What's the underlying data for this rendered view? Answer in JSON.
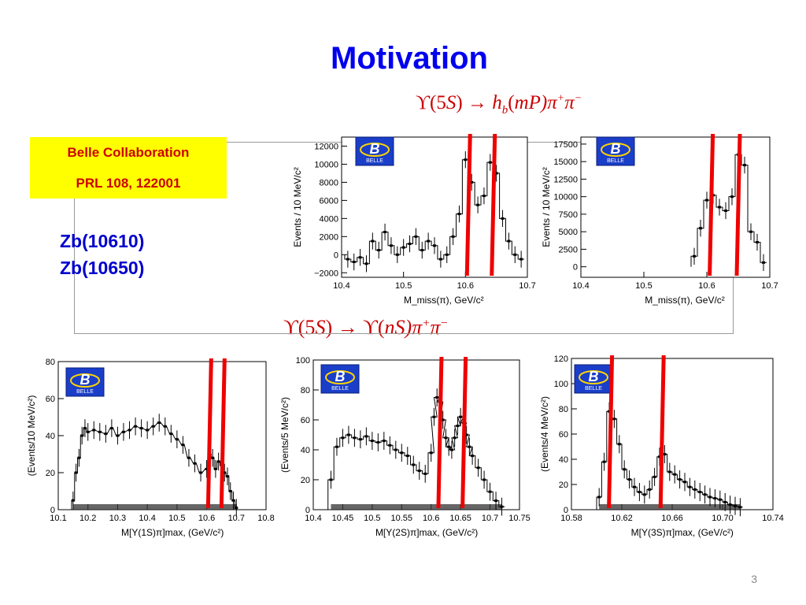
{
  "slide": {
    "title": "Motivation",
    "page_number": "3",
    "eq_top": "ϒ(5S) → h_b(mP)π⁺π⁻",
    "eq_top_parts": {
      "a": "ϒ(5",
      "b": "S",
      "c": ") → ",
      "d": "h",
      "e": "b",
      "f": "(",
      "g": "mP",
      "h": ")π",
      "i": "+",
      "j": "π",
      "k": "−"
    },
    "eq_mid": "ϒ(5S) → ϒ(nS)π⁺π⁻",
    "eq_mid_parts": {
      "a": "ϒ(5",
      "b": "S",
      "c": ") → ϒ(",
      "d": "nS",
      "e": ")π",
      "f": "+",
      "g": "π",
      "h": "−"
    },
    "ref_box": {
      "line1": "Belle Collaboration",
      "line2": "PRL 108, 122001",
      "bg": "#ffff00",
      "color": "#cc0000"
    },
    "states": [
      "Zb(10610)",
      "Zb(10650)"
    ],
    "logo_text": "BELLE",
    "marker_color": "#ee0000",
    "title_color": "#0000ee"
  },
  "chart_data": [
    {
      "type": "line",
      "panel": "top-left",
      "xlabel": "M_miss(π), GeV/c²",
      "ylabel": "Events / 10 MeV/c²",
      "xlim": [
        10.4,
        10.7
      ],
      "ylim": [
        -2500,
        13000
      ],
      "xticks": [
        "10.4",
        "10.5",
        "10.6",
        "10.7"
      ],
      "yticks": [
        "−2000",
        "0",
        "2000",
        "4000",
        "6000",
        "8000",
        "10000",
        "12000"
      ],
      "x": [
        10.41,
        10.42,
        10.43,
        10.44,
        10.45,
        10.46,
        10.47,
        10.48,
        10.49,
        10.5,
        10.51,
        10.52,
        10.53,
        10.54,
        10.55,
        10.56,
        10.57,
        10.58,
        10.59,
        10.6,
        10.61,
        10.62,
        10.63,
        10.64,
        10.65,
        10.66,
        10.67,
        10.68,
        10.69
      ],
      "y": [
        -500,
        -800,
        -300,
        -1000,
        1500,
        500,
        2500,
        1000,
        0,
        800,
        1200,
        2000,
        500,
        1500,
        1000,
        -500,
        0,
        2000,
        4500,
        10500,
        8000,
        5500,
        6500,
        10200,
        9000,
        4000,
        1500,
        0,
        -500
      ],
      "markers_x": [
        10.605,
        10.645
      ]
    },
    {
      "type": "line",
      "panel": "top-right",
      "xlabel": "M_miss(π), GeV/c²",
      "ylabel": "Events / 10 MeV/c²",
      "xlim": [
        10.4,
        10.7
      ],
      "ylim": [
        -1500,
        18500
      ],
      "xticks": [
        "10.4",
        "10.5",
        "10.6",
        "10.7"
      ],
      "yticks": [
        "0",
        "2500",
        "5000",
        "7500",
        "10000",
        "12500",
        "15000",
        "17500"
      ],
      "x": [
        10.58,
        10.59,
        10.6,
        10.61,
        10.62,
        10.63,
        10.64,
        10.65,
        10.66,
        10.67,
        10.68,
        10.69
      ],
      "y": [
        1500,
        5500,
        9500,
        10200,
        8500,
        8000,
        10000,
        16000,
        14500,
        5000,
        3500,
        600
      ],
      "markers_x": [
        10.607,
        10.65
      ]
    },
    {
      "type": "line",
      "panel": "bottom-1",
      "xlabel": "M[Y(1S)π]max, (GeV/c²)",
      "ylabel": "(Events/10 MeV/c²)",
      "xlim": [
        10.1,
        10.8
      ],
      "ylim": [
        0,
        80
      ],
      "xticks": [
        "10.1",
        "10.2",
        "10.3",
        "10.4",
        "10.5",
        "10.6",
        "10.7",
        "10.8"
      ],
      "yticks": [
        "0",
        "20",
        "40",
        "60",
        "80"
      ],
      "x": [
        10.15,
        10.16,
        10.17,
        10.18,
        10.19,
        10.2,
        10.22,
        10.24,
        10.26,
        10.28,
        10.3,
        10.32,
        10.34,
        10.36,
        10.38,
        10.4,
        10.42,
        10.44,
        10.46,
        10.48,
        10.5,
        10.52,
        10.54,
        10.56,
        10.58,
        10.6,
        10.61,
        10.62,
        10.63,
        10.64,
        10.65,
        10.66,
        10.67,
        10.68,
        10.69,
        10.7
      ],
      "y": [
        5,
        20,
        28,
        40,
        44,
        42,
        43,
        42,
        41,
        44,
        40,
        42,
        43,
        45,
        44,
        43,
        45,
        47,
        45,
        41,
        38,
        35,
        28,
        25,
        20,
        22,
        30,
        28,
        22,
        26,
        24,
        20,
        18,
        10,
        5,
        1
      ],
      "markers_x": [
        10.61,
        10.655
      ]
    },
    {
      "type": "line",
      "panel": "bottom-2",
      "xlabel": "M[Y(2S)π]max, (GeV/c²)",
      "ylabel": "(Events/5 MeV/c²)",
      "xlim": [
        10.4,
        10.75
      ],
      "ylim": [
        0,
        100
      ],
      "xticks": [
        "10.4",
        "10.45",
        "10.5",
        "10.55",
        "10.6",
        "10.65",
        "10.7",
        "10.75"
      ],
      "yticks": [
        "0",
        "20",
        "40",
        "60",
        "80",
        "100"
      ],
      "x": [
        10.43,
        10.44,
        10.45,
        10.46,
        10.47,
        10.48,
        10.49,
        10.5,
        10.51,
        10.52,
        10.53,
        10.54,
        10.55,
        10.56,
        10.57,
        10.58,
        10.59,
        10.6,
        10.605,
        10.61,
        10.615,
        10.62,
        10.625,
        10.63,
        10.635,
        10.64,
        10.645,
        10.65,
        10.655,
        10.66,
        10.665,
        10.67,
        10.68,
        10.69,
        10.7,
        10.71,
        10.72
      ],
      "y": [
        20,
        42,
        48,
        50,
        48,
        47,
        49,
        46,
        45,
        46,
        43,
        40,
        38,
        36,
        30,
        26,
        24,
        38,
        62,
        75,
        72,
        60,
        48,
        42,
        40,
        48,
        56,
        62,
        58,
        50,
        42,
        36,
        28,
        20,
        12,
        6,
        2
      ],
      "markers_x": [
        10.615,
        10.656
      ]
    },
    {
      "type": "line",
      "panel": "bottom-3",
      "xlabel": "M[Y(3S)π]max, (GeV/c²)",
      "ylabel": "(Events/4 MeV/c²)",
      "xlim": [
        10.58,
        10.74
      ],
      "ylim": [
        0,
        120
      ],
      "xticks": [
        "10.58",
        "10.62",
        "10.66",
        "10.70",
        "10.74"
      ],
      "yticks": [
        "0",
        "20",
        "40",
        "60",
        "80",
        "100",
        "120"
      ],
      "x": [
        10.602,
        10.606,
        10.61,
        10.614,
        10.618,
        10.622,
        10.626,
        10.63,
        10.634,
        10.638,
        10.642,
        10.646,
        10.65,
        10.654,
        10.658,
        10.662,
        10.666,
        10.67,
        10.674,
        10.678,
        10.682,
        10.686,
        10.69,
        10.694,
        10.698,
        10.702,
        10.706,
        10.71,
        10.714
      ],
      "y": [
        10,
        38,
        78,
        72,
        52,
        32,
        24,
        18,
        14,
        12,
        16,
        26,
        42,
        44,
        30,
        28,
        24,
        22,
        18,
        16,
        14,
        12,
        10,
        9,
        8,
        6,
        4,
        3,
        2
      ],
      "markers_x": [
        10.611,
        10.652
      ]
    }
  ]
}
